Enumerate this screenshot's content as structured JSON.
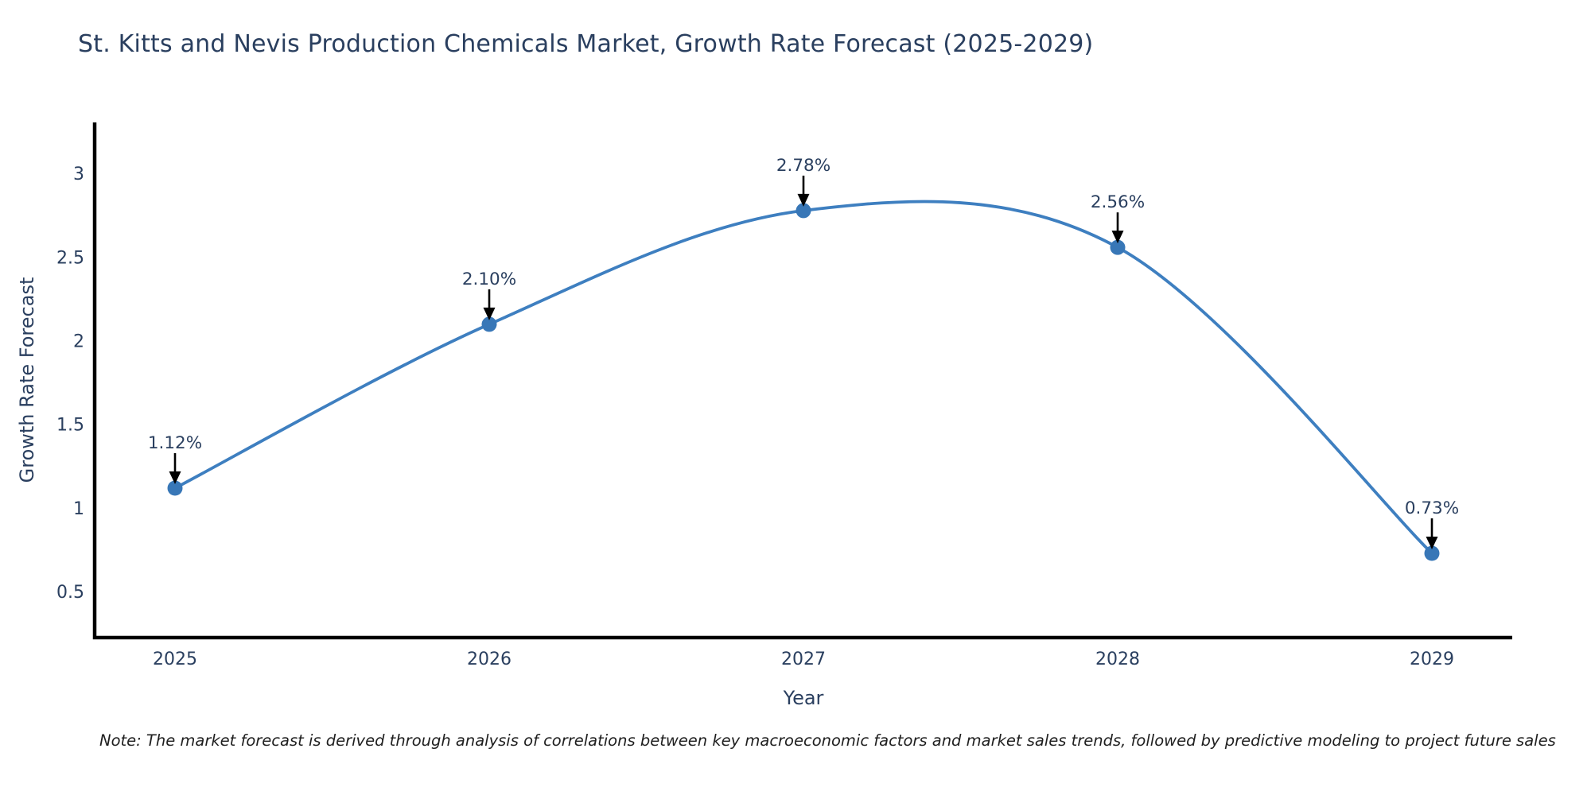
{
  "figure": {
    "title": "St. Kitts and Nevis Production Chemicals Market, Growth Rate Forecast (2025-2029)",
    "note": "Note: The market forecast is derived through analysis of correlations between key macroeconomic factors and market sales trends, followed by predictive modeling to project future sales"
  },
  "chart_data": {
    "type": "line",
    "line_shape": "spline",
    "title": "St. Kitts and Nevis Production Chemicals Market, Growth Rate Forecast (2025-2029)",
    "xlabel": "Year",
    "ylabel": "Growth Rate Forecast",
    "x": [
      2025,
      2026,
      2027,
      2028,
      2029
    ],
    "values": [
      1.12,
      2.1,
      2.78,
      2.56,
      0.73
    ],
    "point_labels": [
      "1.12%",
      "2.10%",
      "2.78%",
      "2.56%",
      "0.73%"
    ],
    "x_ticks": [
      "2025",
      "2026",
      "2027",
      "2028",
      "2029"
    ],
    "y_ticks": [
      "0.5",
      "1",
      "1.5",
      "2",
      "2.5",
      "3"
    ],
    "y_tick_values": [
      0.5,
      1,
      1.5,
      2,
      2.5,
      3
    ],
    "xlim": [
      2024.74,
      2029.26
    ],
    "ylim": [
      0.22,
      3.31
    ],
    "grid": false,
    "legend": "none",
    "annotation_style": "downward black arrows to each marker",
    "colors": {
      "line": "#3e7fc0",
      "marker": "#3877b7",
      "text": "#2a3f5f",
      "arrow": "#000000",
      "axis": "#000000",
      "background": "#ffffff"
    }
  }
}
